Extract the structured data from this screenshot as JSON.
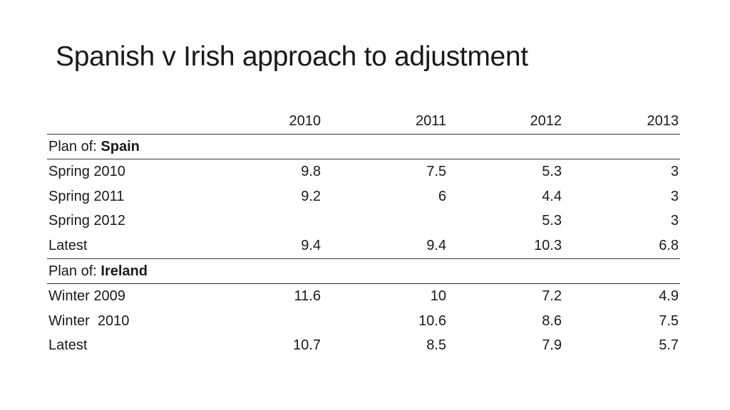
{
  "title": "Spanish v Irish approach to adjustment",
  "columns": [
    "",
    "2010",
    "2011",
    "2012",
    "2013"
  ],
  "sections": [
    {
      "prefix": "Plan of: ",
      "country": "Spain",
      "rows": [
        {
          "label": "Spring 2010",
          "values": [
            "9.8",
            "7.5",
            "5.3",
            "3"
          ]
        },
        {
          "label": "Spring 2011",
          "values": [
            "9.2",
            "6",
            "4.4",
            "3"
          ]
        },
        {
          "label": "Spring 2012",
          "values": [
            "",
            "",
            "5.3",
            "3"
          ]
        },
        {
          "label": "Latest",
          "values": [
            "9.4",
            "9.4",
            "10.3",
            "6.8"
          ]
        }
      ]
    },
    {
      "prefix": "Plan of: ",
      "country": "Ireland",
      "rows": [
        {
          "label": "Winter 2009",
          "values": [
            "11.6",
            "10",
            "7.2",
            "4.9"
          ]
        },
        {
          "label": "Winter  2010",
          "values": [
            "",
            "10.6",
            "8.6",
            "7.5"
          ]
        },
        {
          "label": "Latest",
          "values": [
            "10.7",
            "8.5",
            "7.9",
            "5.7"
          ]
        }
      ]
    }
  ]
}
